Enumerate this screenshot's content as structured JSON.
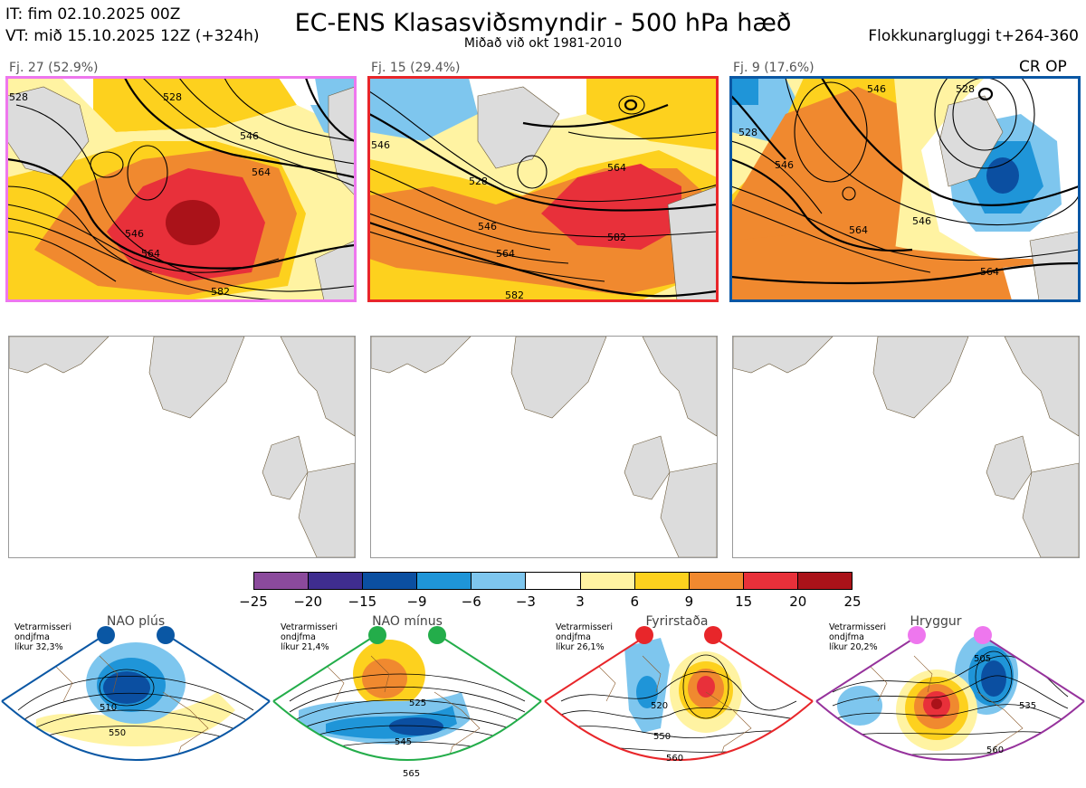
{
  "header": {
    "it_line": "IT: fim 02.10.2025 00Z",
    "vt_line": "VT: mið 15.10.2025 12Z  (+324h)",
    "title": "EC-ENS Klasasviðsmyndir - 500 hPa hæð",
    "subtitle": "Miðað við okt 1981-2010",
    "window": "Flokkunargluggi t+264-360"
  },
  "panels": [
    {
      "label": "Fj. 27 (52.9%)",
      "border_color": "#ee77ee",
      "contours": [
        "528",
        "528",
        "546",
        "546",
        "564",
        "564",
        "582"
      ]
    },
    {
      "label": "Fj. 15 (29.4%)",
      "border_color": "#e8262a",
      "contours": [
        "528",
        "546",
        "546",
        "564",
        "564",
        "582",
        "582"
      ]
    },
    {
      "label": "Fj. 9 (17.6%)",
      "border_color": "#0a57a4",
      "contours": [
        "528",
        "528",
        "546",
        "546",
        "546",
        "564",
        "564"
      ],
      "tag": "CR OP"
    }
  ],
  "colorbar": {
    "ticks": [
      "−25",
      "−20",
      "−15",
      "−9",
      "−6",
      "−3",
      "3",
      "6",
      "9",
      "15",
      "20",
      "25"
    ],
    "colors": [
      "#8b4a9c",
      "#3f2d8f",
      "#0b4fa1",
      "#1f95d8",
      "#7ec6ee",
      "#ffffff",
      "#fff3a2",
      "#fdd11e",
      "#f0892f",
      "#e8303a",
      "#aa1219"
    ]
  },
  "regimes": [
    {
      "name": "NAO plús",
      "note": "Vetrarmisseri\nondjfma\nlíkur 32,3%",
      "color": "#0a57a4",
      "contours": [
        "510",
        "550"
      ]
    },
    {
      "name": "NAO mínus",
      "note": "Vetrarmisseri\nondjfma\nlíkur 21,4%",
      "color": "#23ad4a",
      "contours": [
        "525",
        "545",
        "565"
      ]
    },
    {
      "name": "Fyrirstaða",
      "note": "Vetrarmisseri\nondjfma\nlíkur 26,1%",
      "color": "#e8262a",
      "contours": [
        "520",
        "550",
        "560"
      ]
    },
    {
      "name": "Hryggur",
      "note": "Vetrarmisseri\nondjfma\nlíkur 20,2%",
      "color": "#96329c",
      "dot_color": "#ee77ee",
      "contours": [
        "505",
        "535",
        "560"
      ]
    }
  ]
}
